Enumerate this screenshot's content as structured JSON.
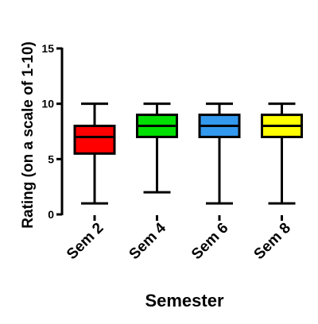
{
  "chart_data": {
    "type": "box",
    "title": "",
    "xlabel": "Semester",
    "ylabel": "Rating (on a scale of 1-10)",
    "ylim": [
      0,
      15
    ],
    "yticks": [
      0,
      5,
      10,
      15
    ],
    "grid": false,
    "categories": [
      "Sem 2",
      "Sem 4",
      "Sem 6",
      "Sem 8"
    ],
    "boxes": [
      {
        "min": 1,
        "q1": 5.5,
        "median": 7,
        "q3": 8,
        "max": 10,
        "color": "#ff0000"
      },
      {
        "min": 2,
        "q1": 7,
        "median": 8,
        "q3": 9,
        "max": 10,
        "color": "#00e000"
      },
      {
        "min": 1,
        "q1": 7,
        "median": 8,
        "q3": 9,
        "max": 10,
        "color": "#3399ee"
      },
      {
        "min": 1,
        "q1": 7,
        "median": 8,
        "q3": 9,
        "max": 10,
        "color": "#ffff00"
      }
    ]
  }
}
